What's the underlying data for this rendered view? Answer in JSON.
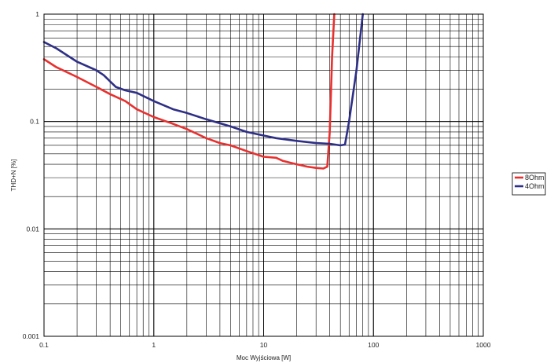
{
  "chart_data": {
    "type": "line",
    "xlabel": "Moc Wyjściowa [W]",
    "ylabel": "THD+N [%]",
    "x_scale": "log",
    "y_scale": "log",
    "xlim": [
      0.1,
      1000
    ],
    "ylim": [
      0.001,
      1
    ],
    "grid": true,
    "legend_position": "right",
    "x_ticks": [
      0.1,
      1,
      10,
      100,
      1000
    ],
    "x_tick_labels": [
      "0.1",
      "1",
      "10",
      "100",
      "1000"
    ],
    "y_ticks": [
      0.001,
      0.01,
      0.1,
      1
    ],
    "y_tick_labels": [
      "0.001",
      "0.01",
      "0.1",
      "1"
    ],
    "series": [
      {
        "name": "8Ohm",
        "color": "#e8302e",
        "points": [
          [
            0.1,
            0.38
          ],
          [
            0.13,
            0.32
          ],
          [
            0.2,
            0.26
          ],
          [
            0.3,
            0.21
          ],
          [
            0.4,
            0.18
          ],
          [
            0.55,
            0.155
          ],
          [
            0.7,
            0.13
          ],
          [
            1.0,
            0.11
          ],
          [
            1.5,
            0.095
          ],
          [
            2.0,
            0.085
          ],
          [
            3.0,
            0.07
          ],
          [
            4.0,
            0.063
          ],
          [
            5.0,
            0.06
          ],
          [
            7.0,
            0.053
          ],
          [
            10.0,
            0.047
          ],
          [
            13.0,
            0.046
          ],
          [
            15.0,
            0.043
          ],
          [
            20.0,
            0.04
          ],
          [
            25.0,
            0.038
          ],
          [
            30.0,
            0.037
          ],
          [
            35.0,
            0.0365
          ],
          [
            38.0,
            0.038
          ],
          [
            40.0,
            0.08
          ],
          [
            42.0,
            0.4
          ],
          [
            44.0,
            1.0
          ]
        ]
      },
      {
        "name": "4Ohm",
        "color": "#2e2f86",
        "points": [
          [
            0.1,
            0.55
          ],
          [
            0.13,
            0.48
          ],
          [
            0.2,
            0.36
          ],
          [
            0.3,
            0.3
          ],
          [
            0.35,
            0.27
          ],
          [
            0.45,
            0.21
          ],
          [
            0.55,
            0.195
          ],
          [
            0.7,
            0.185
          ],
          [
            1.0,
            0.155
          ],
          [
            1.5,
            0.13
          ],
          [
            2.0,
            0.12
          ],
          [
            3.0,
            0.105
          ],
          [
            5.0,
            0.09
          ],
          [
            7.0,
            0.08
          ],
          [
            10.0,
            0.074
          ],
          [
            13.0,
            0.07
          ],
          [
            20.0,
            0.066
          ],
          [
            30.0,
            0.063
          ],
          [
            40.0,
            0.062
          ],
          [
            50.0,
            0.06
          ],
          [
            55.0,
            0.061
          ],
          [
            60.0,
            0.1
          ],
          [
            70.0,
            0.3
          ],
          [
            80.0,
            1.0
          ]
        ]
      }
    ]
  }
}
